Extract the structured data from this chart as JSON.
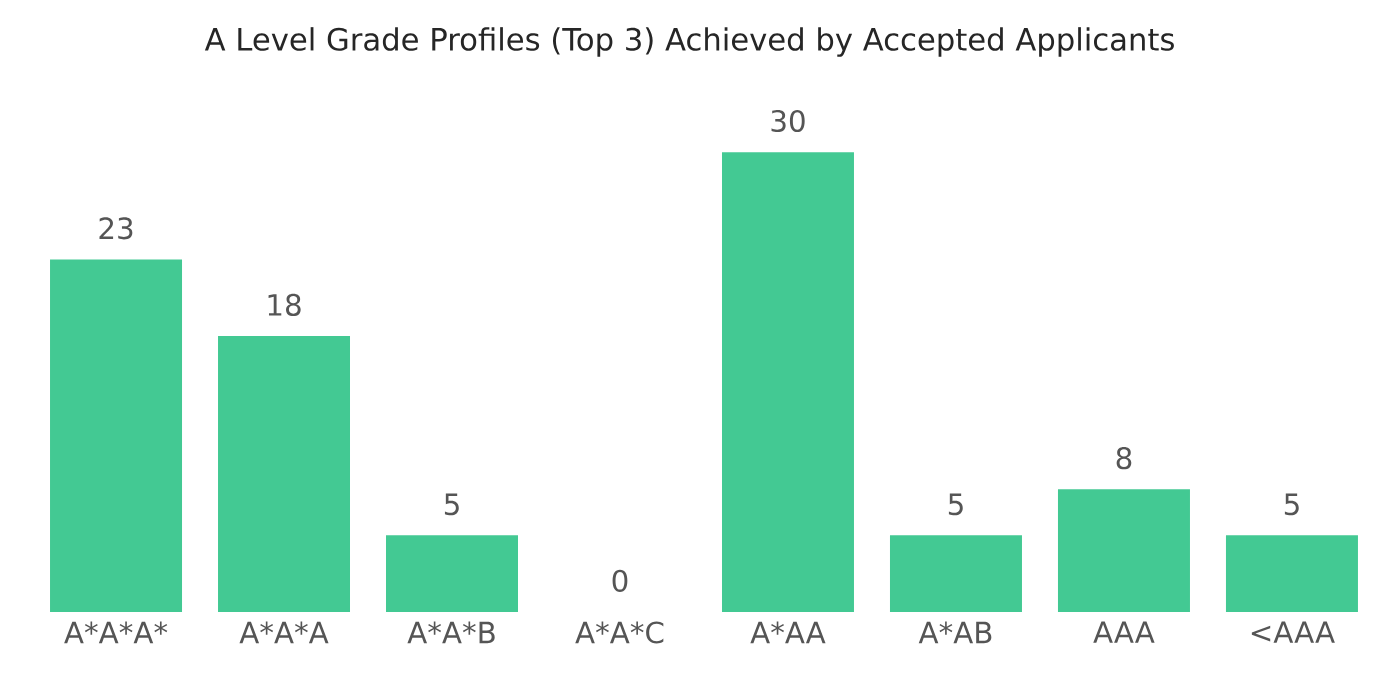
{
  "chart_data": {
    "type": "bar",
    "title": "A Level Grade Profiles (Top 3) Achieved by Accepted Applicants",
    "categories": [
      "A*A*A*",
      "A*A*A",
      "A*A*B",
      "A*A*C",
      "A*AA",
      "A*AB",
      "AAA",
      "<AAA"
    ],
    "values": [
      23,
      18,
      5,
      0,
      30,
      5,
      8,
      5
    ],
    "color": "#43c993",
    "data_labels": true
  }
}
